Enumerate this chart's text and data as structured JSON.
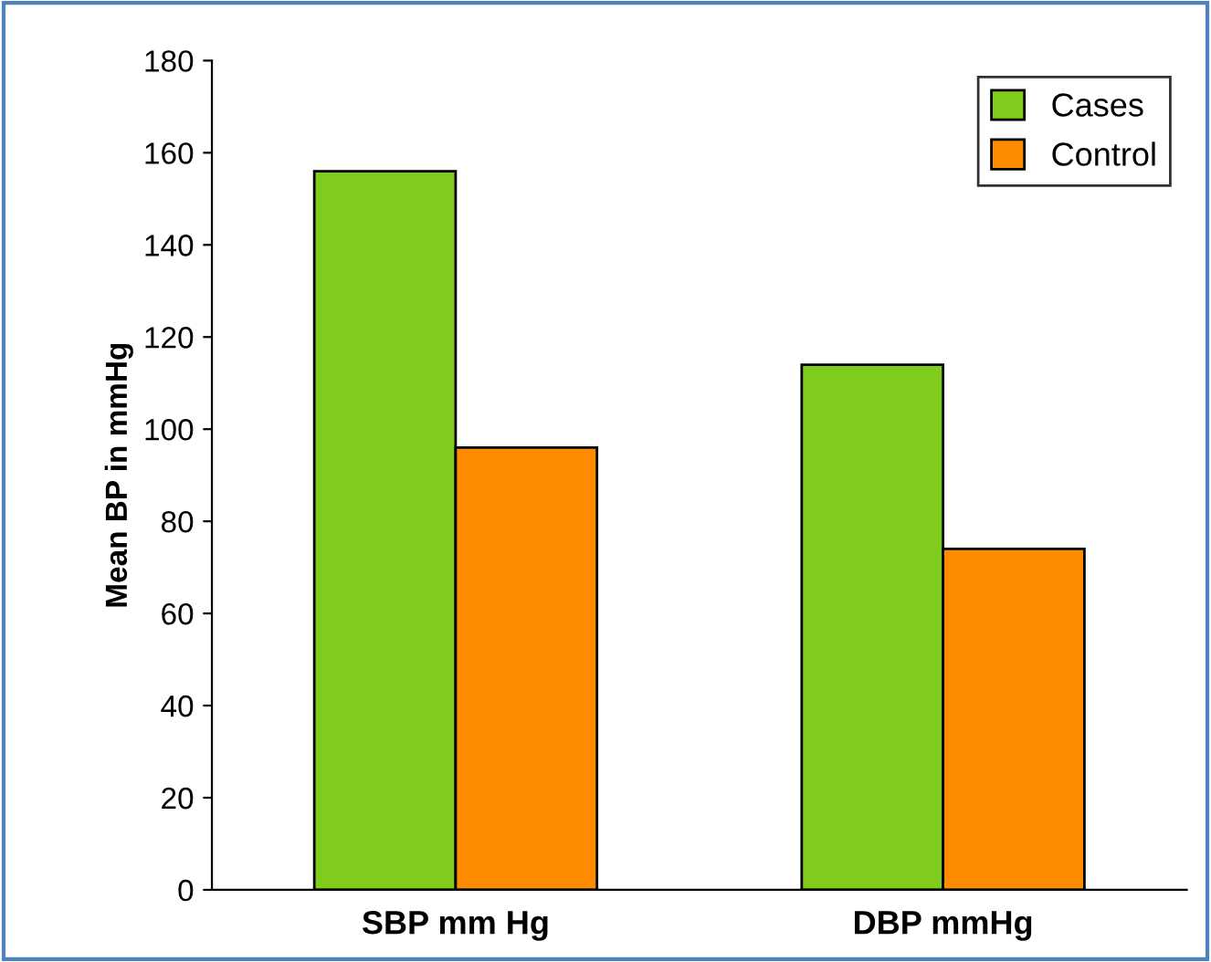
{
  "chart_data": {
    "type": "bar",
    "ylabel": "Mean BP in mmHg",
    "categories": [
      "SBP mm Hg",
      "DBP mmHg"
    ],
    "series": [
      {
        "name": "Cases",
        "color": "#80cc1c",
        "values": [
          156,
          114
        ]
      },
      {
        "name": "Control",
        "color": "#ff8c00",
        "values": [
          96,
          74
        ]
      }
    ],
    "ylim": [
      0,
      180
    ],
    "yticks": [
      0,
      20,
      40,
      60,
      80,
      100,
      120,
      140,
      160,
      180
    ],
    "grid": false,
    "legend": "top right"
  }
}
